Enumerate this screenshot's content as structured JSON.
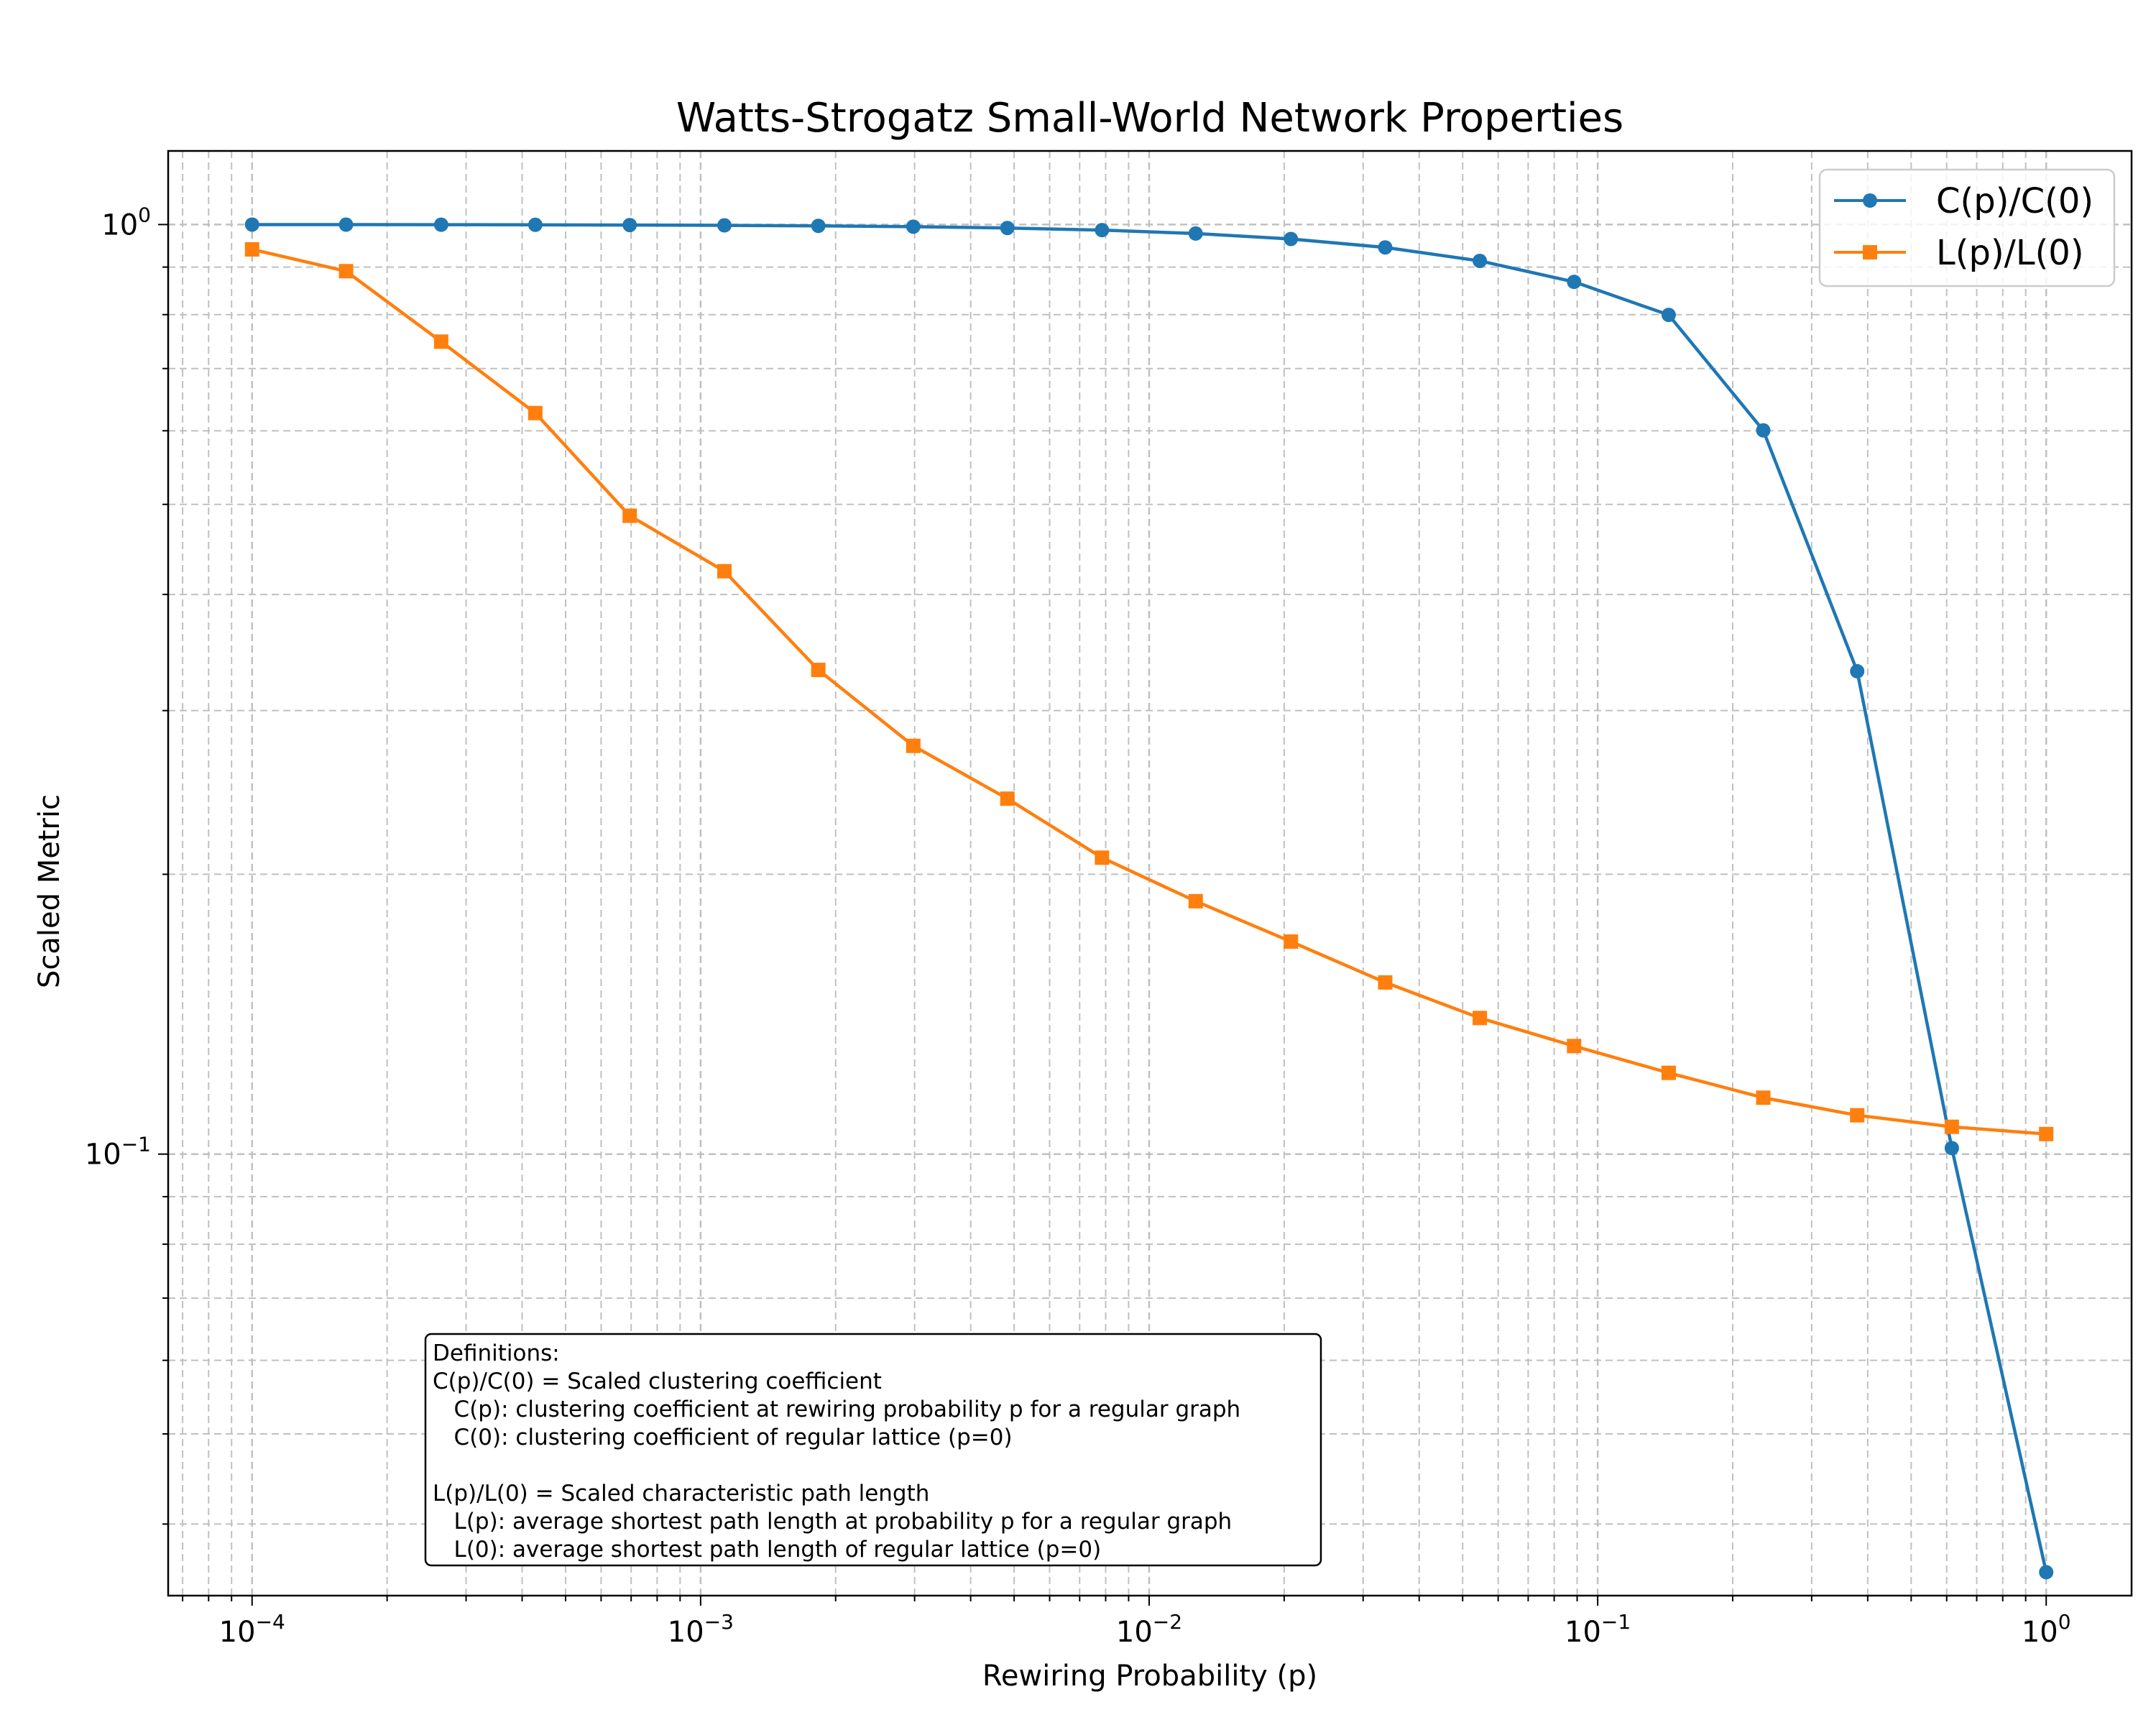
{
  "chart_data": {
    "type": "line",
    "title": "Watts-Strogatz Small-World Network Properties",
    "xlabel": "Rewiring Probability (p)",
    "ylabel": "Scaled Metric",
    "xscale": "log",
    "yscale": "log",
    "xlim": [
      6.5e-05,
      1.55
    ],
    "ylim": [
      0.0335,
      1.2
    ],
    "grid": true,
    "legend_position": "top-right",
    "x_ticks": [
      {
        "value": 0.0001,
        "base": "10",
        "exp": "−4"
      },
      {
        "value": 0.001,
        "base": "10",
        "exp": "−3"
      },
      {
        "value": 0.01,
        "base": "10",
        "exp": "−2"
      },
      {
        "value": 0.1,
        "base": "10",
        "exp": "−1"
      },
      {
        "value": 1,
        "base": "10",
        "exp": "0"
      }
    ],
    "y_ticks": [
      {
        "value": 0.1,
        "base": "10",
        "exp": "−1"
      },
      {
        "value": 1,
        "base": "10",
        "exp": "0"
      }
    ],
    "x": [
      0.0001,
      0.000162,
      0.000264,
      0.000428,
      0.000695,
      0.00113,
      0.00183,
      0.00298,
      0.00483,
      0.00785,
      0.0127,
      0.0207,
      0.0336,
      0.0546,
      0.0886,
      0.144,
      0.234,
      0.379,
      0.616,
      1.0
    ],
    "series": [
      {
        "name": "C(p)/C(0)",
        "color": "#1f77b4",
        "marker": "circle",
        "values": [
          0.9999,
          0.9998,
          0.9996,
          0.9993,
          0.9988,
          0.998,
          0.9968,
          0.9948,
          0.9915,
          0.9863,
          0.978,
          0.9649,
          0.9449,
          0.9139,
          0.8676,
          0.7994,
          0.6006,
          0.3307,
          0.1015,
          0.0355
        ]
      },
      {
        "name": "L(p)/L(0)",
        "color": "#ff7f0e",
        "marker": "square",
        "values": [
          0.9403,
          0.8909,
          0.7482,
          0.6269,
          0.4861,
          0.4237,
          0.3318,
          0.2749,
          0.2412,
          0.2084,
          0.1871,
          0.1693,
          0.153,
          0.1401,
          0.1307,
          0.1223,
          0.115,
          0.1101,
          0.107,
          0.1051
        ]
      }
    ],
    "annotation": {
      "lines": [
        "Definitions:",
        "C(p)/C(0) = Scaled clustering coefficient",
        "   C(p): clustering coefficient at rewiring probability p for a regular graph",
        "   C(0): clustering coefficient of regular lattice (p=0)",
        "",
        "L(p)/L(0) = Scaled characteristic path length",
        "   L(p): average shortest path length at probability p for a regular graph",
        "   L(0): average shortest path length of regular lattice (p=0)"
      ]
    }
  }
}
